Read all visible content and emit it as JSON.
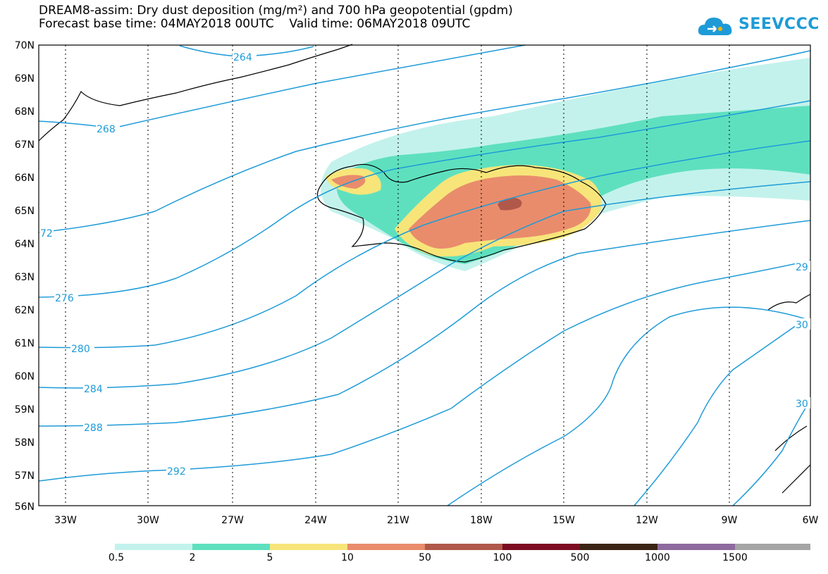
{
  "title": {
    "line1": "DREAM8-assim: Dry dust deposition (mg/m²) and 700 hPa geopotential (gpdm)",
    "line2": "Forecast base time: 04MAY2018 00UTC    Valid time: 06MAY2018 09UTC"
  },
  "logo": {
    "text": "SEEVCCC",
    "icon": "cloud-icon"
  },
  "axes": {
    "lat_labels": [
      "70N",
      "69N",
      "68N",
      "67N",
      "66N",
      "65N",
      "64N",
      "63N",
      "62N",
      "61N",
      "60N",
      "59N",
      "58N",
      "57N",
      "56N"
    ],
    "lon_labels": [
      "33W",
      "30W",
      "27W",
      "24W",
      "21W",
      "18W",
      "15W",
      "12W",
      "9W",
      "6W"
    ]
  },
  "contour_labels": [
    "264",
    "268",
    "72",
    "276",
    "280",
    "284",
    "288",
    "292",
    "29",
    "30",
    "30"
  ],
  "legend": {
    "labels": [
      "0.5",
      "2",
      "5",
      "10",
      "50",
      "100",
      "500",
      "1000",
      "1500"
    ],
    "colors": [
      "#c3f2ec",
      "#5ee0bf",
      "#f7e57a",
      "#e98c6c",
      "#b0584a",
      "#7c0c22",
      "#3b2414",
      "#8e6a9f",
      "#a5a5a5"
    ]
  },
  "colors": {
    "contour": "#1e9bd7",
    "coast": "#000000"
  }
}
